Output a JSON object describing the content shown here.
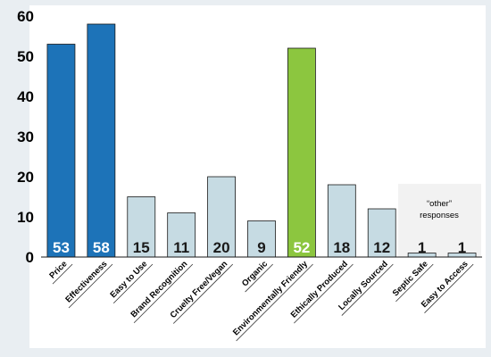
{
  "chart_data": {
    "type": "bar",
    "title": "",
    "xlabel": "",
    "ylabel": "",
    "ylim": [
      0,
      60
    ],
    "yticks": [
      0,
      10,
      20,
      30,
      40,
      50,
      60
    ],
    "grid": false,
    "categories": [
      "Price",
      "Effectiveness",
      "Easy to Use",
      "Brand Recognition",
      "Cruelty Free/Vegan",
      "Organic",
      "Environmentally Friendly",
      "Ethically Produced",
      "Locally Sourced",
      "Septic Safe",
      "Easy to Access"
    ],
    "values": [
      53,
      58,
      15,
      11,
      20,
      9,
      52,
      18,
      12,
      1,
      1
    ],
    "data_labels": [
      "53",
      "58",
      "15",
      "11",
      "20",
      "9",
      "52",
      "18",
      "12",
      "1",
      "1"
    ],
    "colors": [
      "#1d73b8",
      "#1d73b8",
      "#c6dbe3",
      "#c6dbe3",
      "#c6dbe3",
      "#c6dbe3",
      "#8cc63f",
      "#c6dbe3",
      "#c6dbe3",
      "#c6dbe3",
      "#c6dbe3"
    ],
    "annotation": "“other”\nresponses"
  }
}
